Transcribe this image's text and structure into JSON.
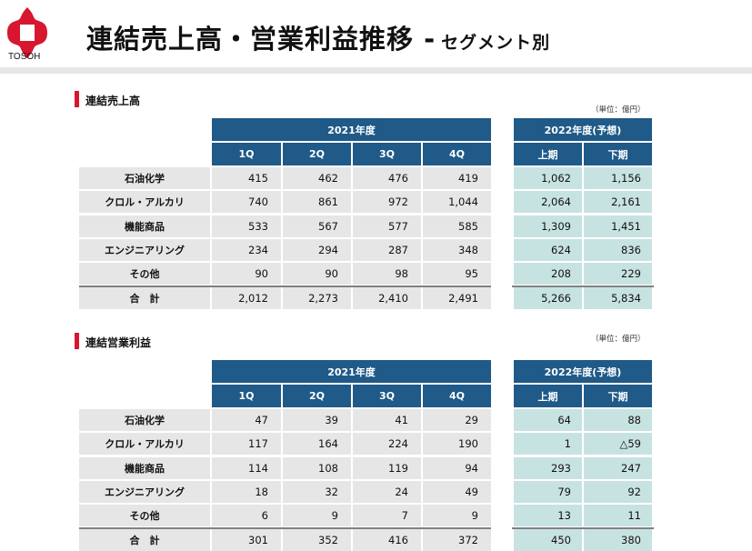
{
  "brand": {
    "name": "TOSOH",
    "color": "#d7172f"
  },
  "title": {
    "main": "連結売上高・営業利益推移 -",
    "sub": "セグメント別"
  },
  "tables": [
    {
      "heading": "連結売上高",
      "unit": "（単位：億円）",
      "year_label": "2021年度",
      "forecast_label": "2022年度(予想)",
      "quarters": [
        "1Q",
        "2Q",
        "3Q",
        "4Q"
      ],
      "halves": [
        "上期",
        "下期"
      ],
      "rows": [
        {
          "label": "石油化学",
          "q": [
            "415",
            "462",
            "476",
            "419"
          ],
          "f": [
            "1,062",
            "1,156"
          ]
        },
        {
          "label": "クロル・アルカリ",
          "q": [
            "740",
            "861",
            "972",
            "1,044"
          ],
          "f": [
            "2,064",
            "2,161"
          ]
        },
        {
          "label": "機能商品",
          "q": [
            "533",
            "567",
            "577",
            "585"
          ],
          "f": [
            "1,309",
            "1,451"
          ]
        },
        {
          "label": "エンジニアリング",
          "q": [
            "234",
            "294",
            "287",
            "348"
          ],
          "f": [
            "624",
            "836"
          ]
        },
        {
          "label": "その他",
          "q": [
            "90",
            "90",
            "98",
            "95"
          ],
          "f": [
            "208",
            "229"
          ]
        },
        {
          "label": "合　計",
          "q": [
            "2,012",
            "2,273",
            "2,410",
            "2,491"
          ],
          "f": [
            "5,266",
            "5,834"
          ]
        }
      ]
    },
    {
      "heading": "連結営業利益",
      "unit": "（単位：億円）",
      "year_label": "2021年度",
      "forecast_label": "2022年度(予想)",
      "quarters": [
        "1Q",
        "2Q",
        "3Q",
        "4Q"
      ],
      "halves": [
        "上期",
        "下期"
      ],
      "rows": [
        {
          "label": "石油化学",
          "q": [
            "47",
            "39",
            "41",
            "29"
          ],
          "f": [
            "64",
            "88"
          ]
        },
        {
          "label": "クロル・アルカリ",
          "q": [
            "117",
            "164",
            "224",
            "190"
          ],
          "f": [
            "1",
            "△59"
          ]
        },
        {
          "label": "機能商品",
          "q": [
            "114",
            "108",
            "119",
            "94"
          ],
          "f": [
            "293",
            "247"
          ]
        },
        {
          "label": "エンジニアリング",
          "q": [
            "18",
            "32",
            "24",
            "49"
          ],
          "f": [
            "79",
            "92"
          ]
        },
        {
          "label": "その他",
          "q": [
            "6",
            "9",
            "7",
            "9"
          ],
          "f": [
            "13",
            "11"
          ]
        },
        {
          "label": "合　計",
          "q": [
            "301",
            "352",
            "416",
            "372"
          ],
          "f": [
            "450",
            "380"
          ]
        }
      ]
    }
  ]
}
